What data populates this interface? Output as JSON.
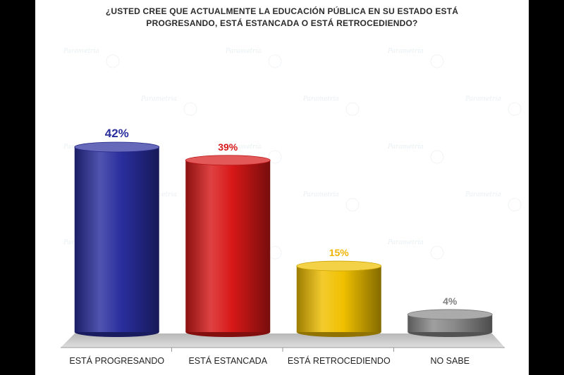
{
  "title_lines": [
    "¿USTED CREE QUE ACTUALMENTE LA EDUCACIÓN PÚBLICA EN SU ESTADO ESTÁ",
    "PROGRESANDO, ESTÁ ESTANCADA O ESTÁ RETROCEDIENDO?"
  ],
  "watermark": "Parametría",
  "chart_data": {
    "type": "bar",
    "title": "¿USTED CREE QUE ACTUALMENTE LA EDUCACIÓN PÚBLICA EN SU ESTADO ESTÁ PROGRESANDO, ESTÁ ESTANCADA O ESTÁ RETROCEDIENDO?",
    "categories": [
      "ESTÁ PROGRESANDO",
      "ESTÁ ESTANCADA",
      "ESTÁ RETROCEDIENDO",
      "NO SABE"
    ],
    "values": [
      42,
      39,
      15,
      4
    ],
    "value_labels": [
      "42%",
      "39%",
      "15%",
      "4%"
    ],
    "colors": [
      "#2a2e9e",
      "#d81818",
      "#f0c000",
      "#8a8a8a"
    ],
    "label_colors": [
      "#2a2e9e",
      "#d81818",
      "#f0b400",
      "#808080"
    ],
    "ylim": [
      0,
      45
    ],
    "grid": false,
    "legend": "none"
  }
}
